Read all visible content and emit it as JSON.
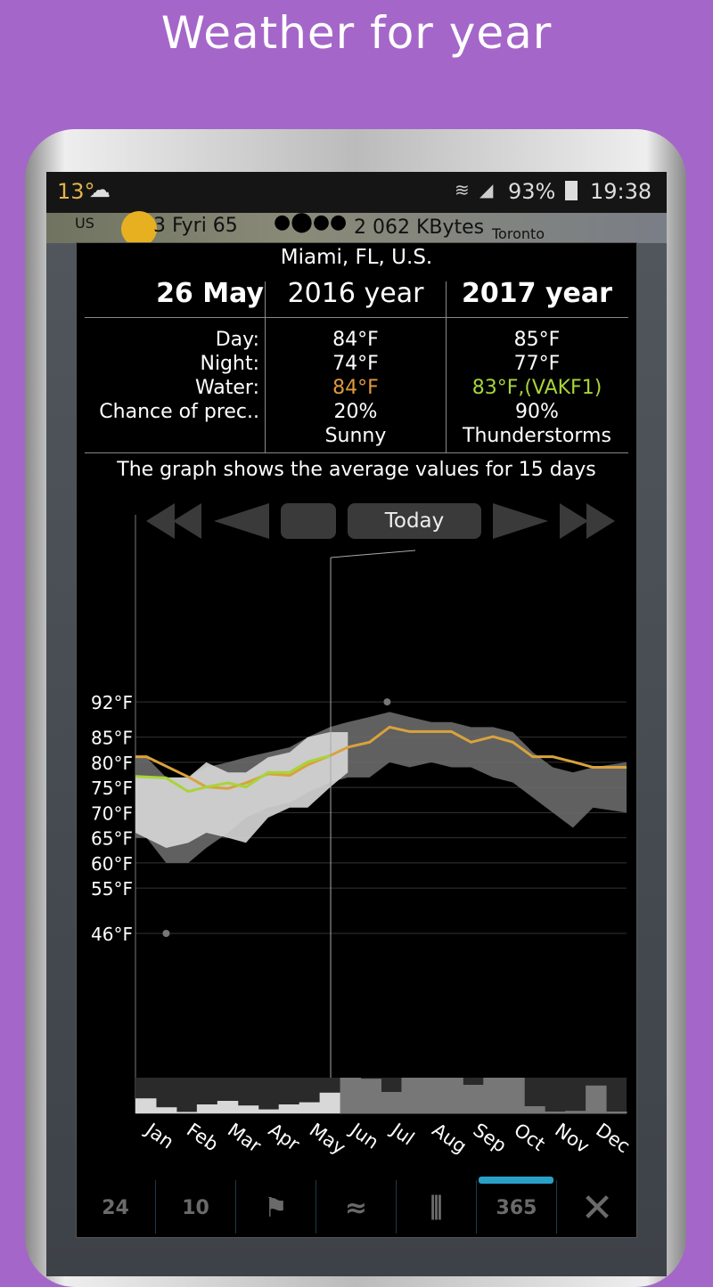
{
  "title": "Weather for year",
  "status": {
    "temp": "13°",
    "weather_icon": "cloud-rain-icon",
    "battery": "93%",
    "time": "19:38"
  },
  "mapstrip": {
    "left": "US",
    "temp": "3 Fyri 65",
    "data": "2 062 KBytes",
    "city": "Toronto"
  },
  "dialog": {
    "location": "Miami, FL, U.S.",
    "headers": [
      "26 May",
      "2016 year",
      "2017 year"
    ],
    "labels": [
      "Day:",
      "Night:",
      "Water:",
      "Chance of prec..",
      ""
    ],
    "col2016": [
      "84°F",
      "74°F",
      "84°F",
      "20%",
      "Sunny"
    ],
    "col2017": [
      "85°F",
      "77°F",
      "83°F,(VAKF1)",
      "90%",
      "Thunderstorms"
    ],
    "note": "The graph shows the average values for 15 days",
    "today_label": "Today"
  },
  "colors": {
    "water2016": "#e09a3a",
    "water2017": "#a8d43a",
    "line_orange": "#d9a23c",
    "line_green": "#a8d43a",
    "band_dark": "#6a6a6a",
    "band_light": "#d8d8d8"
  },
  "chart_data": {
    "type": "area",
    "ylim": [
      46,
      92
    ],
    "y_ticks": [
      "92°F",
      "85°F",
      "80°F",
      "75°F",
      "70°F",
      "65°F",
      "60°F",
      "55°F",
      "46°F"
    ],
    "y_tick_values": [
      92,
      85,
      80,
      75,
      70,
      65,
      60,
      55,
      46
    ],
    "x_ticks": [
      "Jan",
      "Feb",
      "Mar",
      "Apr",
      "May",
      "Jun",
      "Jul",
      "Aug",
      "Sep",
      "Oct",
      "Nov",
      "Dec"
    ],
    "today_month": 4.77,
    "series": [
      {
        "kind": "band",
        "color": "#6a6a6a",
        "x": [
          0,
          0.27,
          0.75,
          1.29,
          1.73,
          2.26,
          2.7,
          3.24,
          3.77,
          4.21,
          4.75,
          5.19,
          5.72,
          6.21,
          6.7,
          7.23,
          7.72,
          8.2,
          8.74,
          9.22,
          9.71,
          10.2,
          10.69,
          11.18,
          12
        ],
        "upper": [
          81,
          81,
          77,
          77,
          79,
          80,
          81,
          82,
          83,
          85,
          87,
          88,
          89,
          90,
          89,
          88,
          88,
          87,
          87,
          86,
          82,
          79,
          78,
          79,
          80
        ],
        "lower": [
          65,
          65,
          60,
          60,
          63,
          66,
          69,
          71,
          72,
          74,
          76,
          77,
          77,
          80,
          79,
          80,
          79,
          79,
          77,
          76,
          73,
          70,
          67,
          71,
          70
        ]
      },
      {
        "kind": "band",
        "color": "#d8d8d8",
        "x": [
          0,
          0.75,
          1.29,
          1.73,
          2.26,
          2.7,
          3.24,
          3.77,
          4.21,
          4.75,
          5.19
        ],
        "upper": [
          77,
          77,
          77,
          80,
          78,
          78,
          81,
          82,
          85,
          86,
          86
        ],
        "lower": [
          66,
          63,
          64,
          66,
          65,
          64,
          69,
          71,
          71,
          75,
          78
        ]
      },
      {
        "kind": "line",
        "color": "#d9a23c",
        "x": [
          0,
          0.27,
          1.29,
          1.73,
          2.26,
          2.7,
          3.24,
          3.77,
          4.21,
          4.75,
          5.19,
          5.72,
          6.21,
          6.7,
          7.23,
          7.72,
          8.2,
          8.74,
          9.22,
          9.71,
          10.2,
          10.69,
          11.18,
          12
        ],
        "y": [
          81.1,
          81.1,
          77.1,
          75.1,
          74.8,
          75.9,
          77.7,
          77.4,
          79.5,
          81.3,
          83.0,
          84.0,
          87.0,
          86.1,
          86.1,
          86.1,
          84.0,
          85.1,
          84.0,
          81.1,
          81.1,
          80.1,
          79.0,
          79.0
        ]
      },
      {
        "kind": "line",
        "color": "#a8d43a",
        "x": [
          0,
          0.75,
          1.29,
          1.73,
          2.26,
          2.7,
          3.24,
          3.77,
          4.21,
          4.75
        ],
        "y": [
          77.2,
          76.9,
          74.2,
          75.1,
          75.9,
          75.1,
          78.0,
          78.0,
          80.1,
          81.3
        ]
      }
    ],
    "points": [
      {
        "x": 0.75,
        "y": 46
      },
      {
        "x": 6.15,
        "y": 92
      }
    ],
    "precip_fraction": [
      0.42,
      0.17,
      0.04,
      0.25,
      0.35,
      0.22,
      0.11,
      0.25,
      0.31,
      0.58,
      1,
      0.97,
      0.6,
      1,
      1,
      1,
      0.8,
      1,
      1,
      0.2,
      0.05,
      0.07,
      0.78,
      0.05
    ]
  },
  "toolbar": {
    "items": [
      "24",
      "10",
      "",
      "",
      "",
      "365",
      ""
    ],
    "icons": [
      "",
      "",
      "person-flag-icon",
      "waves-icon",
      "chart-lines-icon",
      "",
      "close-icon"
    ],
    "active": "365"
  }
}
